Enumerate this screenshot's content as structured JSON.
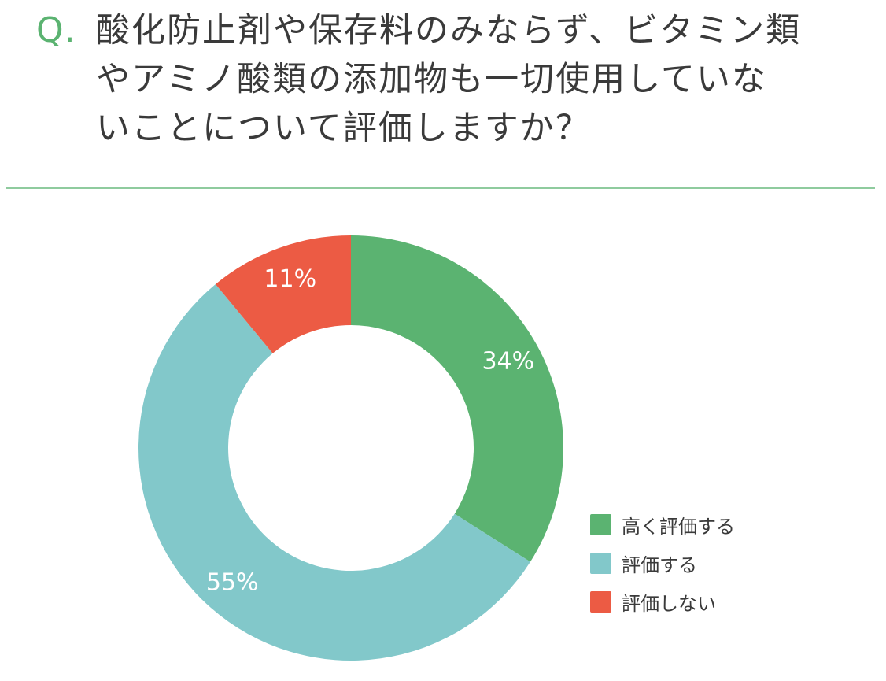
{
  "header": {
    "q_mark": "Q.",
    "question_lines": [
      "酸化防止剤や保存料のみならず、ビタミン類",
      "やアミノ酸類の添加物も一切使用していな",
      "いことについて評価しますか？"
    ]
  },
  "chart_data": {
    "type": "pie",
    "variant": "donut",
    "unit": "%",
    "slices": [
      {
        "label": "高く評価する",
        "value": 34,
        "display": "34%",
        "color": "#5bb371"
      },
      {
        "label": "評価する",
        "value": 55,
        "display": "55%",
        "color": "#82c8ca"
      },
      {
        "label": "評価しない",
        "value": 11,
        "display": "11%",
        "color": "#ec5b44"
      }
    ],
    "legend_position": "bottom-right"
  }
}
